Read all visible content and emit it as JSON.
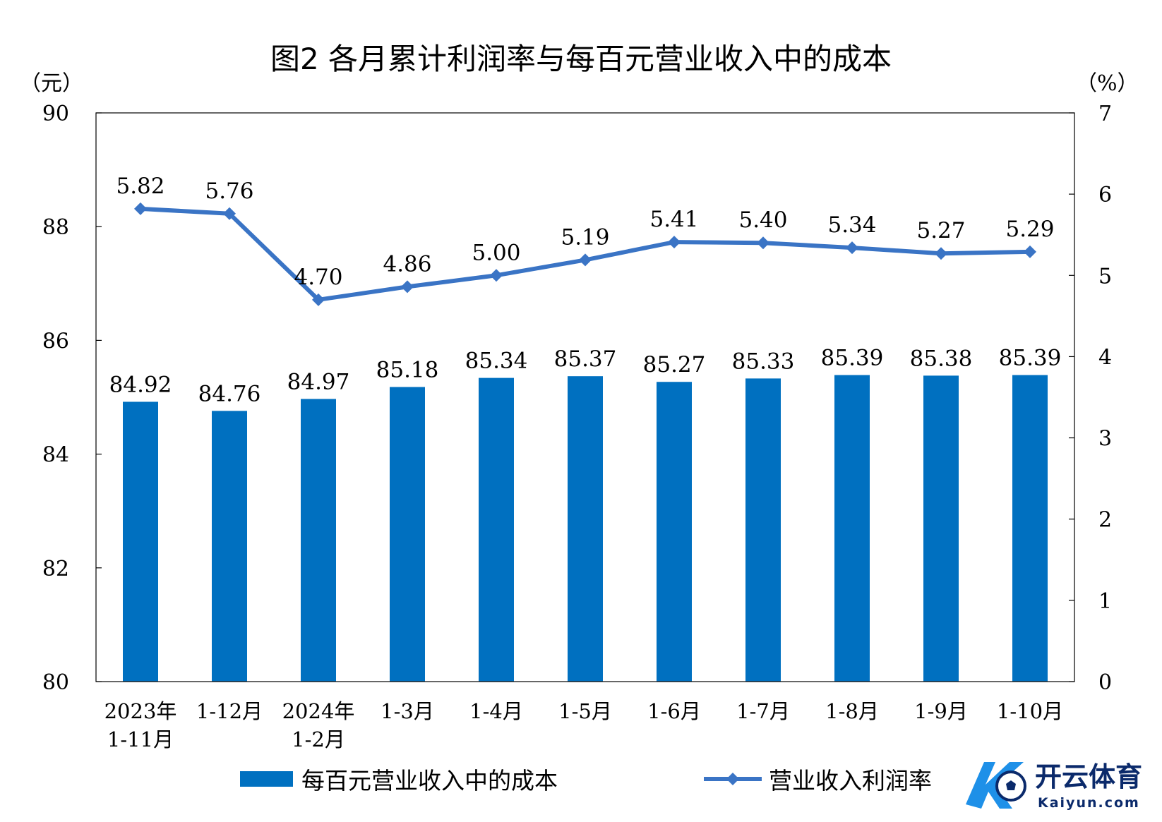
{
  "chart_data": {
    "type": "bar+line",
    "title": "图2  各月累计利润率与每百元营业收入中的成本",
    "y_left_unit": "（元）",
    "y_right_unit": "（%）",
    "ylim_left": [
      80,
      90
    ],
    "ylim_right": [
      0,
      7
    ],
    "yticks_left": [
      "80",
      "82",
      "84",
      "86",
      "88",
      "90"
    ],
    "yticks_right": [
      "0",
      "1",
      "2",
      "3",
      "4",
      "5",
      "6",
      "7"
    ],
    "categories": [
      [
        "2023年",
        "1-11月"
      ],
      [
        "1-12月"
      ],
      [
        "2024年",
        "1-2月"
      ],
      [
        "1-3月"
      ],
      [
        "1-4月"
      ],
      [
        "1-5月"
      ],
      [
        "1-6月"
      ],
      [
        "1-7月"
      ],
      [
        "1-8月"
      ],
      [
        "1-9月"
      ],
      [
        "1-10月"
      ]
    ],
    "series": [
      {
        "name": "每百元营业收入中的成本",
        "type": "bar",
        "axis": "left",
        "color": "#0070C0",
        "values": [
          84.92,
          84.76,
          84.97,
          85.18,
          85.34,
          85.37,
          85.27,
          85.33,
          85.39,
          85.38,
          85.39
        ],
        "labels": [
          "84.92",
          "84.76",
          "84.97",
          "85.18",
          "85.34",
          "85.37",
          "85.27",
          "85.33",
          "85.39",
          "85.38",
          "85.39"
        ]
      },
      {
        "name": "营业收入利润率",
        "type": "line",
        "axis": "right",
        "color": "#3A74C5",
        "marker": "diamond",
        "values": [
          5.82,
          5.76,
          4.7,
          4.86,
          5.0,
          5.19,
          5.41,
          5.4,
          5.34,
          5.27,
          5.29
        ],
        "labels": [
          "5.82",
          "5.76",
          "4.70",
          "4.86",
          "5.00",
          "5.19",
          "5.41",
          "5.40",
          "5.34",
          "5.27",
          "5.29"
        ]
      }
    ]
  },
  "logo": {
    "text_cn": "开云体育",
    "text_en": "Kaiyun.com"
  }
}
